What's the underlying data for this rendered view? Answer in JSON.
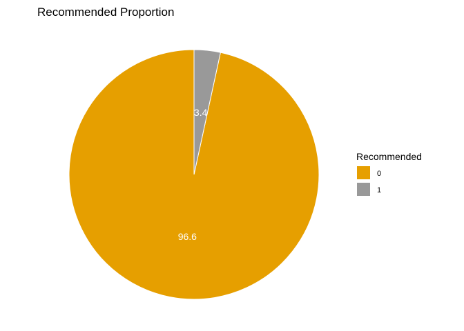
{
  "chart_data": {
    "type": "pie",
    "title": "Recommended Proportion",
    "legend_title": "Recommended",
    "legend_position": "right",
    "grid": false,
    "slices": [
      {
        "label": "0",
        "value": 96.6,
        "display": "96.6",
        "color": "#E69F00"
      },
      {
        "label": "1",
        "value": 3.4,
        "display": "3.4",
        "color": "#999999"
      }
    ]
  }
}
